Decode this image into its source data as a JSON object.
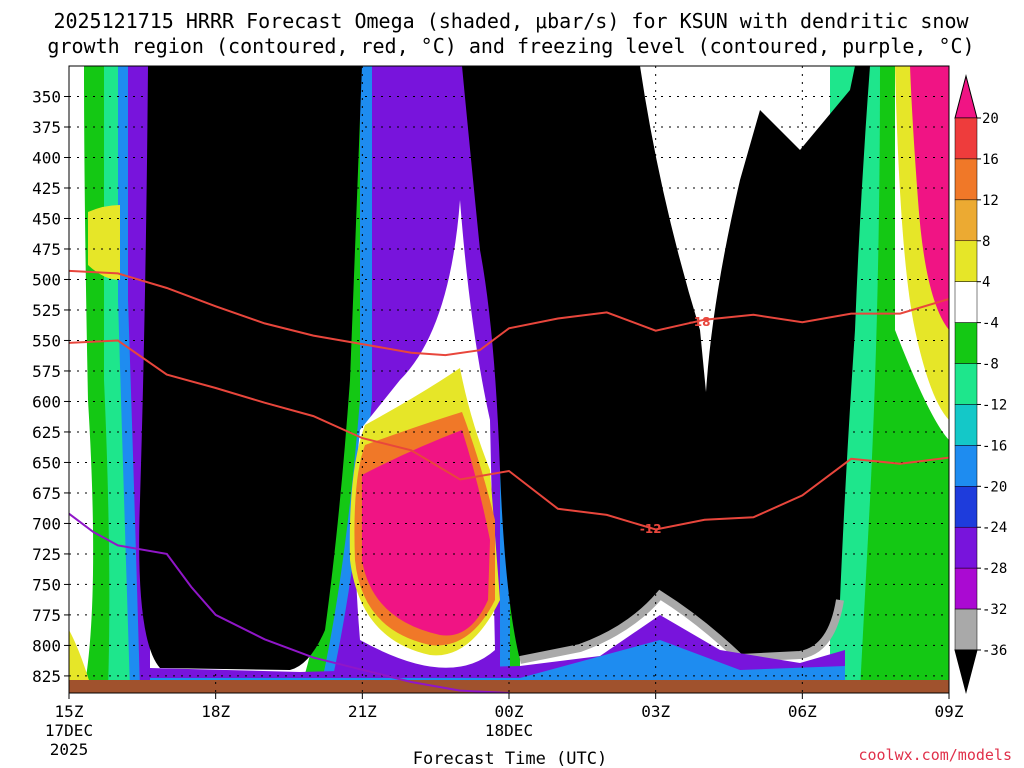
{
  "chart_data": {
    "type": "heatmap",
    "title_line1": "2025121715 HRRR Forecast Omega (shaded, μbar/s) for KSUN with dendritic snow",
    "title_line2": "growth region (contoured, red, °C) and freezing level (contoured, purple, °C)",
    "xlabel": "Forecast Time (UTC)",
    "credit": "coolwx.com/models",
    "x_range_hours": [
      0,
      18
    ],
    "x_ticks": [
      {
        "hour": 0,
        "label": "15Z",
        "sub1": "17DEC",
        "sub2": "2025"
      },
      {
        "hour": 3,
        "label": "18Z",
        "sub1": "",
        "sub2": ""
      },
      {
        "hour": 6,
        "label": "21Z",
        "sub1": "",
        "sub2": ""
      },
      {
        "hour": 9,
        "label": "00Z",
        "sub1": "18DEC",
        "sub2": ""
      },
      {
        "hour": 12,
        "label": "03Z",
        "sub1": "",
        "sub2": ""
      },
      {
        "hour": 15,
        "label": "06Z",
        "sub1": "",
        "sub2": ""
      },
      {
        "hour": 18,
        "label": "09Z",
        "sub1": "",
        "sub2": ""
      }
    ],
    "y_range_hpa": [
      325,
      839
    ],
    "y_ticks": [
      "350",
      "375",
      "400",
      "425",
      "450",
      "475",
      "500",
      "525",
      "550",
      "575",
      "600",
      "625",
      "650",
      "675",
      "700",
      "725",
      "750",
      "775",
      "800",
      "825"
    ],
    "colorbar": {
      "labels": [
        "20",
        "16",
        "12",
        "8",
        "4",
        "-4",
        "-8",
        "-12",
        "-16",
        "-20",
        "-24",
        "-28",
        "-32",
        "-36"
      ],
      "colors": [
        "#f01484",
        "#ee3c3c",
        "#f07828",
        "#ecaa32",
        "#e6e628",
        "#ffffff",
        "#14c814",
        "#1ee68c",
        "#14c8c8",
        "#1e8cf0",
        "#1e3cdc",
        "#7814dc",
        "#aa0ad2",
        "#a9a9a9"
      ],
      "under_color": "#000000",
      "over_color": "#f01484"
    },
    "contours": [
      {
        "label": "-18",
        "color": "#e8463c",
        "label_hour": 12.9,
        "points": [
          [
            0,
            493
          ],
          [
            1,
            495
          ],
          [
            2,
            507
          ],
          [
            3,
            522
          ],
          [
            4,
            536
          ],
          [
            5,
            546
          ],
          [
            6,
            553
          ],
          [
            7,
            560
          ],
          [
            7.7,
            562
          ],
          [
            8.4,
            558
          ],
          [
            9,
            540
          ],
          [
            10,
            532
          ],
          [
            11,
            527
          ],
          [
            12,
            542
          ],
          [
            13,
            533
          ],
          [
            14,
            529
          ],
          [
            15,
            535
          ],
          [
            16,
            528
          ],
          [
            17,
            528
          ],
          [
            18,
            516
          ]
        ]
      },
      {
        "label": "-12",
        "color": "#e8463c",
        "label_hour": 11.9,
        "points": [
          [
            0,
            552
          ],
          [
            1,
            550
          ],
          [
            2,
            578
          ],
          [
            3,
            589
          ],
          [
            4,
            601
          ],
          [
            5,
            612
          ],
          [
            6,
            630
          ],
          [
            7,
            640
          ],
          [
            8,
            664
          ],
          [
            9,
            657
          ],
          [
            10,
            688
          ],
          [
            11,
            693
          ],
          [
            12,
            705
          ],
          [
            13,
            697
          ],
          [
            14,
            695
          ],
          [
            15,
            677
          ],
          [
            16,
            647
          ],
          [
            17,
            651
          ],
          [
            18,
            646
          ]
        ]
      },
      {
        "label": "",
        "color": "#9016c8",
        "label_hour": null,
        "points": [
          [
            0,
            692
          ],
          [
            0.5,
            707
          ],
          [
            1,
            718
          ],
          [
            2,
            725
          ],
          [
            2.5,
            752
          ],
          [
            3,
            775
          ],
          [
            4,
            795
          ],
          [
            5,
            810
          ],
          [
            6,
            820
          ],
          [
            7,
            830
          ],
          [
            8,
            837
          ],
          [
            9,
            839
          ]
        ]
      }
    ]
  }
}
